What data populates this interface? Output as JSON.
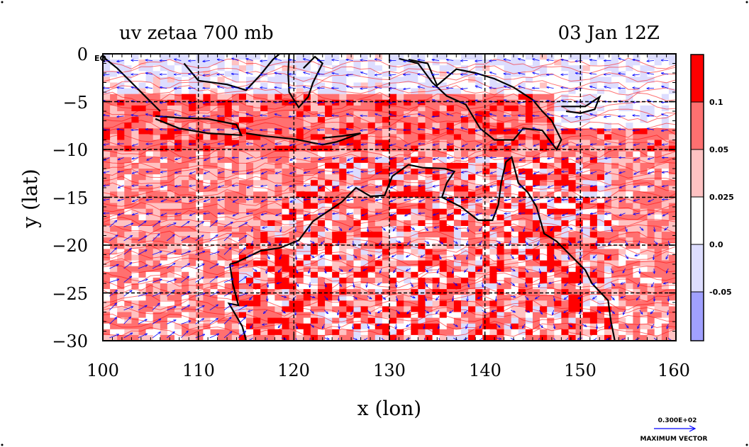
{
  "title_left": "uv zetaa 700 mb",
  "title_right": "03 Jan 12Z",
  "corner_label": "EQ",
  "xlabel": "x (lon)",
  "ylabel": "y (lat)",
  "x_ticks": [
    "100",
    "110",
    "120",
    "130",
    "140",
    "150",
    "160"
  ],
  "y_ticks": [
    "0",
    "−5",
    "−10",
    "−15",
    "−20",
    "−25",
    "−30"
  ],
  "colorbar": {
    "labels": [
      "0.1",
      "0.05",
      "0.025",
      "0.0",
      "-0.05"
    ],
    "colors": [
      "#ff0000",
      "#ff7070",
      "#ffc2c2",
      "#ffffff",
      "#ddddff",
      "#a0a0ff"
    ]
  },
  "vector_key": {
    "value": "0.300E+02",
    "label": "MAXIMUM VECTOR",
    "color": "#0000ff"
  },
  "palette": {
    "coast": "#000000",
    "contour": "#ff0000",
    "vector": "#0000ff",
    "grid": "#000000"
  },
  "chart_data": {
    "type": "heatmap",
    "variable": "zetaa",
    "level": "700 mb",
    "xlabel": "x (lon)",
    "ylabel": "y (lat)",
    "xlim": [
      100,
      160
    ],
    "ylim": [
      -30,
      0
    ],
    "levels": [
      -0.05,
      0.0,
      0.025,
      0.05,
      0.1
    ],
    "grid": true
  }
}
